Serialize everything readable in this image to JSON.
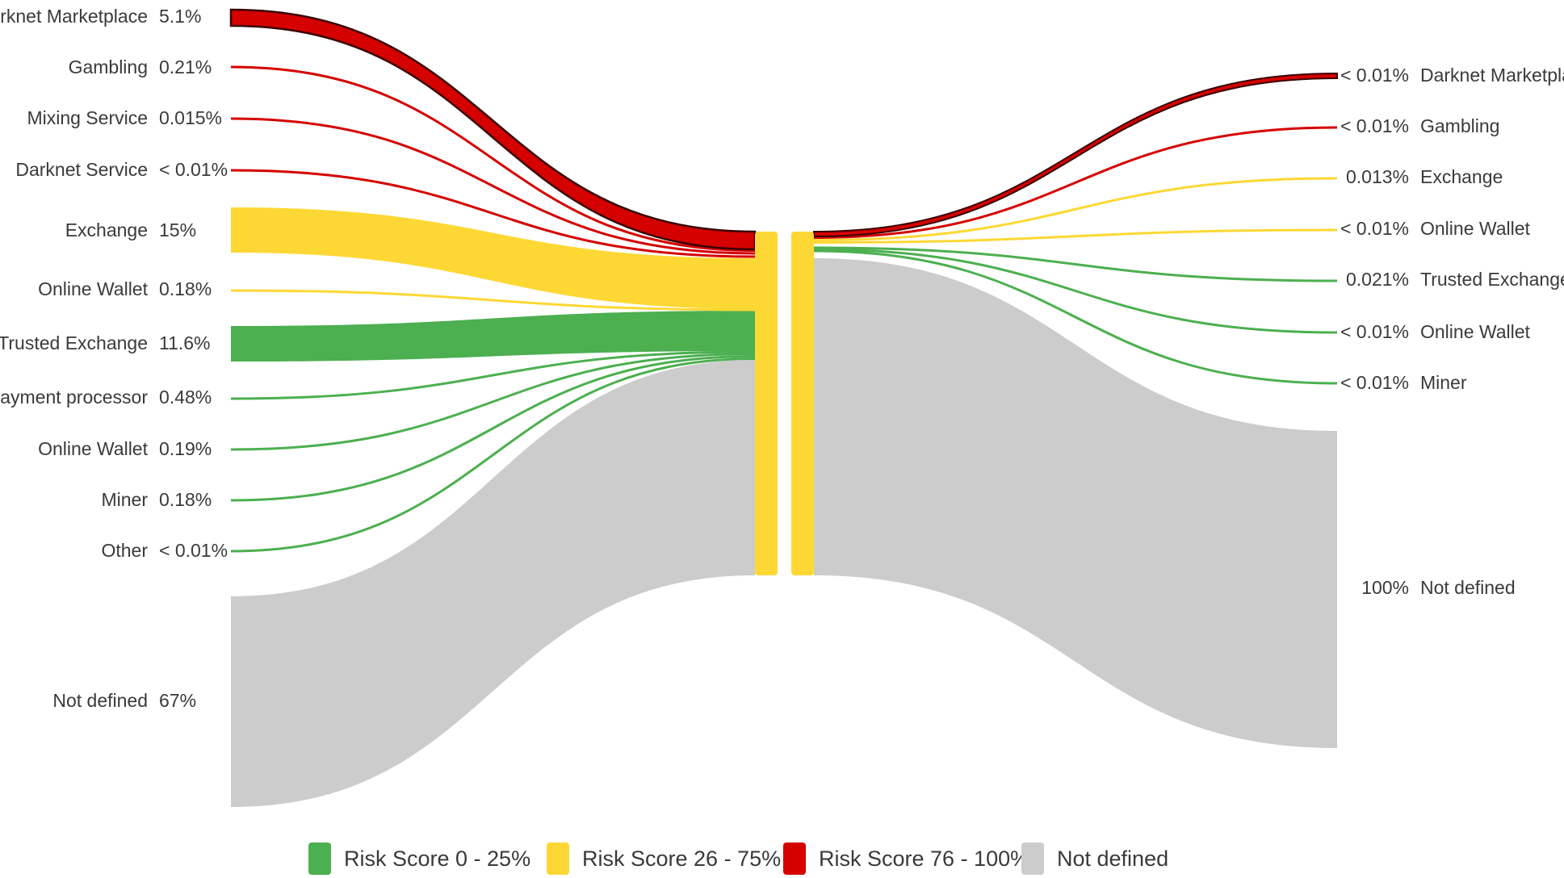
{
  "colors": {
    "green": "#4caf50",
    "yellow": "#fdd835",
    "red": "#d50000",
    "red_outline": "#3a0000",
    "grey": "#cccccc",
    "text": "#3a3a3a"
  },
  "left_nodes": [
    {
      "label": "Darknet Marketplace",
      "pct": "5.1%",
      "color": "red"
    },
    {
      "label": "Gambling",
      "pct": "0.21%",
      "color": "red"
    },
    {
      "label": "Mixing Service",
      "pct": "0.015%",
      "color": "red"
    },
    {
      "label": "Darknet Service",
      "pct": "< 0.01%",
      "color": "red"
    },
    {
      "label": "Exchange",
      "pct": "15%",
      "color": "yellow"
    },
    {
      "label": "Online Wallet",
      "pct": "0.18%",
      "color": "yellow"
    },
    {
      "label": "Trusted Exchange",
      "pct": "11.6%",
      "color": "green"
    },
    {
      "label": "Payment processor",
      "pct": "0.48%",
      "color": "green"
    },
    {
      "label": "Online Wallet",
      "pct": "0.19%",
      "color": "green"
    },
    {
      "label": "Miner",
      "pct": "0.18%",
      "color": "green"
    },
    {
      "label": "Other",
      "pct": "< 0.01%",
      "color": "green"
    },
    {
      "label": "Not defined",
      "pct": "67%",
      "color": "grey"
    }
  ],
  "right_nodes": [
    {
      "label": "Darknet Marketplace",
      "pct": "< 0.01%",
      "color": "red"
    },
    {
      "label": "Gambling",
      "pct": "< 0.01%",
      "color": "red"
    },
    {
      "label": "Exchange",
      "pct": "0.013%",
      "color": "yellow"
    },
    {
      "label": "Online Wallet",
      "pct": "< 0.01%",
      "color": "yellow"
    },
    {
      "label": "Trusted Exchange",
      "pct": "0.021%",
      "color": "green"
    },
    {
      "label": "Online Wallet",
      "pct": "< 0.01%",
      "color": "green"
    },
    {
      "label": "Miner",
      "pct": "< 0.01%",
      "color": "green"
    },
    {
      "label": "Not defined",
      "pct": "100%",
      "color": "grey"
    }
  ],
  "legend": [
    {
      "label": "Risk Score 0 - 25%",
      "color": "green"
    },
    {
      "label": "Risk Score 26 - 75%",
      "color": "yellow"
    },
    {
      "label": "Risk Score 76 - 100%",
      "color": "red"
    },
    {
      "label": "Not defined",
      "color": "grey"
    }
  ]
}
